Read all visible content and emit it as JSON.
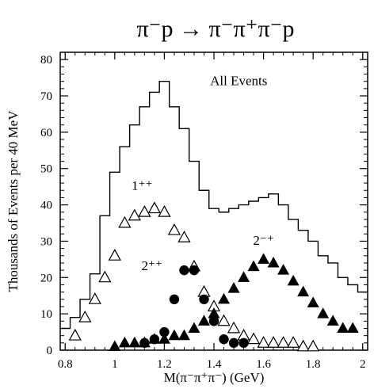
{
  "chart_data": {
    "type": "line",
    "title": "π⁻p → π⁻π⁺π⁻p",
    "xlabel": "M(π⁻π⁺π⁻) (GeV)",
    "ylabel": "Thousands of Events per 40 MeV",
    "xlim": [
      0.78,
      2.02
    ],
    "ylim": [
      0,
      82
    ],
    "x_ticks": [
      0.8,
      1,
      1.2,
      1.4,
      1.6,
      1.8,
      2
    ],
    "x_tick_labels": [
      "0.8",
      "1",
      "1.2",
      "1.4",
      "1.6",
      "1.8",
      "2"
    ],
    "y_ticks": [
      0,
      10,
      20,
      30,
      40,
      50,
      60,
      70,
      80
    ],
    "y_tick_labels": [
      "0",
      "10",
      "20",
      "30",
      "40",
      "50",
      "60",
      "70",
      "80"
    ],
    "bin_edges": [
      0.78,
      0.82,
      0.86,
      0.9,
      0.94,
      0.98,
      1.02,
      1.06,
      1.1,
      1.14,
      1.18,
      1.22,
      1.26,
      1.3,
      1.34,
      1.38,
      1.42,
      1.46,
      1.5,
      1.54,
      1.58,
      1.62,
      1.66,
      1.7,
      1.74,
      1.78,
      1.82,
      1.86,
      1.9,
      1.94,
      1.98,
      2.02
    ],
    "series": [
      {
        "name": "All Events",
        "style": "histogram",
        "values": [
          6,
          9,
          14,
          21,
          37,
          49,
          56,
          62,
          67,
          71,
          74,
          67,
          61,
          52,
          44,
          39,
          38,
          39,
          40,
          41,
          42,
          43,
          40,
          36,
          33,
          30,
          26,
          24,
          20,
          18,
          16
        ]
      },
      {
        "name": "1⁺⁺",
        "marker": "open-triangle",
        "x": [
          0.84,
          0.88,
          0.92,
          0.96,
          1.0,
          1.04,
          1.08,
          1.12,
          1.16,
          1.2,
          1.24,
          1.28,
          1.32,
          1.36,
          1.4,
          1.44,
          1.48,
          1.52,
          1.56,
          1.6,
          1.64,
          1.68,
          1.72,
          1.76,
          1.8
        ],
        "y": [
          4,
          9,
          14,
          20,
          26,
          35,
          37,
          38,
          39,
          38,
          33,
          31,
          23,
          16,
          12,
          8,
          6,
          4,
          3,
          2,
          2,
          2,
          2,
          1,
          1
        ]
      },
      {
        "name": "2⁺⁺",
        "marker": "filled-circle",
        "x": [
          1.12,
          1.16,
          1.2,
          1.24,
          1.28,
          1.32,
          1.36,
          1.4,
          1.44,
          1.48,
          1.52
        ],
        "y": [
          2,
          3,
          5,
          14,
          22,
          22,
          14,
          8,
          3,
          2,
          2
        ]
      },
      {
        "name": "2⁻⁺",
        "marker": "filled-triangle",
        "x": [
          1.0,
          1.04,
          1.08,
          1.12,
          1.16,
          1.2,
          1.24,
          1.28,
          1.32,
          1.36,
          1.4,
          1.44,
          1.48,
          1.52,
          1.56,
          1.6,
          1.64,
          1.68,
          1.72,
          1.76,
          1.8,
          1.84,
          1.88,
          1.92,
          1.96
        ],
        "y": [
          1,
          2,
          2,
          2,
          3,
          3,
          4,
          4,
          6,
          8,
          10,
          14,
          17,
          20,
          23,
          25,
          24,
          22,
          19,
          16,
          13,
          10,
          8,
          6,
          6
        ]
      }
    ],
    "annotations": [
      {
        "text": "All Events",
        "x": 1.5,
        "y": 73
      },
      {
        "text": "1⁺⁺",
        "x": 1.11,
        "y": 44
      },
      {
        "text": "2⁺⁺",
        "x": 1.15,
        "y": 22
      },
      {
        "text": "2⁻⁺",
        "x": 1.6,
        "y": 29
      }
    ],
    "legend": "none",
    "grid": false
  }
}
